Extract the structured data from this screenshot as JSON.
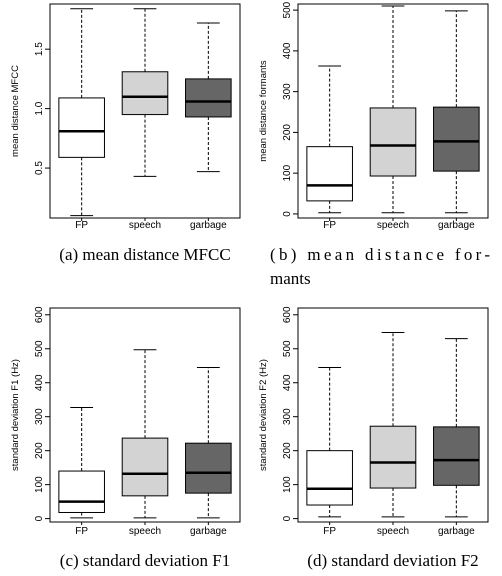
{
  "chart_data": [
    {
      "type": "box",
      "panel": "a",
      "caption": "(a) mean distance MFCC",
      "ylabel": "mean distance MFCC",
      "ylim": [
        0.08,
        1.88
      ],
      "yticks": [
        {
          "value": 0.5,
          "label": "0.5"
        },
        {
          "value": 1.0,
          "label": "1.0"
        },
        {
          "value": 1.5,
          "label": "1.5"
        }
      ],
      "categories": [
        "FP",
        "speech",
        "garbage"
      ],
      "boxes": [
        {
          "min": 0.1,
          "q1": 0.59,
          "median": 0.81,
          "q3": 1.09,
          "max": 1.84
        },
        {
          "min": 0.43,
          "q1": 0.95,
          "median": 1.1,
          "q3": 1.31,
          "max": 1.84
        },
        {
          "min": 0.47,
          "q1": 0.93,
          "median": 1.06,
          "q3": 1.25,
          "max": 1.72
        }
      ]
    },
    {
      "type": "box",
      "panel": "b",
      "caption": "(b) mean distance formants",
      "ylabel": "mean distance formants",
      "ylim": [
        -10,
        515
      ],
      "yticks": [
        {
          "value": 0,
          "label": "0"
        },
        {
          "value": 100,
          "label": "100"
        },
        {
          "value": 200,
          "label": "200"
        },
        {
          "value": 300,
          "label": "300"
        },
        {
          "value": 400,
          "label": "400"
        },
        {
          "value": 500,
          "label": "500"
        }
      ],
      "categories": [
        "FP",
        "speech",
        "garbage"
      ],
      "boxes": [
        {
          "min": 3,
          "q1": 32,
          "median": 70,
          "q3": 165,
          "max": 363
        },
        {
          "min": 3,
          "q1": 93,
          "median": 168,
          "q3": 260,
          "max": 510
        },
        {
          "min": 3,
          "q1": 105,
          "median": 178,
          "q3": 262,
          "max": 498
        }
      ]
    },
    {
      "type": "box",
      "panel": "c",
      "caption": "(c) standard deviation F1",
      "ylabel": "standard deviation F1 (Hz)",
      "ylim": [
        -10,
        620
      ],
      "yticks": [
        {
          "value": 0,
          "label": "0"
        },
        {
          "value": 100,
          "label": "100"
        },
        {
          "value": 200,
          "label": "200"
        },
        {
          "value": 300,
          "label": "300"
        },
        {
          "value": 400,
          "label": "400"
        },
        {
          "value": 500,
          "label": "500"
        },
        {
          "value": 600,
          "label": "600"
        }
      ],
      "categories": [
        "FP",
        "speech",
        "garbage"
      ],
      "boxes": [
        {
          "min": 2,
          "q1": 18,
          "median": 50,
          "q3": 140,
          "max": 327
        },
        {
          "min": 2,
          "q1": 67,
          "median": 132,
          "q3": 237,
          "max": 497
        },
        {
          "min": 2,
          "q1": 75,
          "median": 135,
          "q3": 222,
          "max": 445
        }
      ]
    },
    {
      "type": "box",
      "panel": "d",
      "caption": "(d) standard deviation F2",
      "ylabel": "standard deviation F2 (Hz)",
      "ylim": [
        -10,
        620
      ],
      "yticks": [
        {
          "value": 0,
          "label": "0"
        },
        {
          "value": 100,
          "label": "100"
        },
        {
          "value": 200,
          "label": "200"
        },
        {
          "value": 300,
          "label": "300"
        },
        {
          "value": 400,
          "label": "400"
        },
        {
          "value": 500,
          "label": "500"
        },
        {
          "value": 600,
          "label": "600"
        }
      ],
      "categories": [
        "FP",
        "speech",
        "garbage"
      ],
      "boxes": [
        {
          "min": 5,
          "q1": 40,
          "median": 88,
          "q3": 200,
          "max": 445
        },
        {
          "min": 5,
          "q1": 90,
          "median": 165,
          "q3": 272,
          "max": 548
        },
        {
          "min": 5,
          "q1": 98,
          "median": 172,
          "q3": 270,
          "max": 530
        }
      ]
    }
  ],
  "colors": {
    "fp_fill": "#ffffff",
    "speech_fill": "#d3d3d3",
    "garbage_fill": "#666666",
    "stroke": "#000000"
  }
}
